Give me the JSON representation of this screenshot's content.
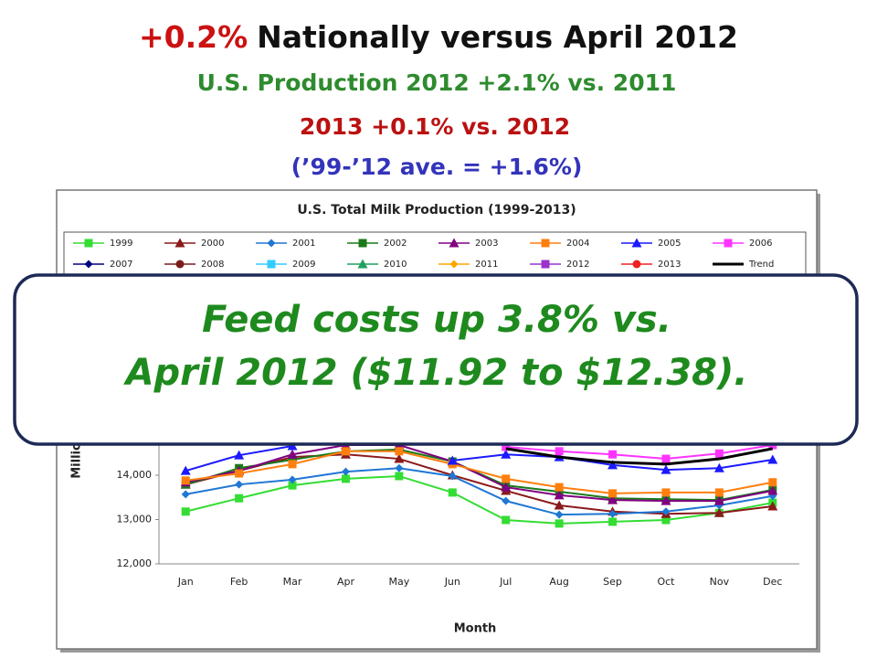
{
  "chart_data": {
    "type": "line",
    "title_prefix": "+0.2%",
    "title": "Nationally versus April 2012",
    "subtitle": "U.S. Production 2012 +2.1% vs. 2011",
    "subtitle_2": "2013 +0.1% vs. 2012",
    "subtitle_3": "(’99-’12 ave. = +1.6%)",
    "chart_title": "U.S. Total Milk Production (1999-2013)",
    "x_label": "Month",
    "y_label": "Million Pounds",
    "callout": [
      "Feed costs up 3.8% vs.",
      "April 2012 ($11.92 to $12.38)."
    ],
    "categories": [
      "Jan",
      "Feb",
      "Mar",
      "Apr",
      "May",
      "Jun",
      "Jul",
      "Aug",
      "Sep",
      "Oct",
      "Nov",
      "Dec"
    ],
    "ylim": [
      12000,
      18000
    ],
    "yticks": [
      {
        "value": 12000,
        "label": "12,000"
      },
      {
        "value": 13000,
        "label": "13,000"
      },
      {
        "value": 14000,
        "label": "14,000"
      }
    ],
    "grid": false,
    "series": [
      {
        "name": "1999",
        "color": "#33dd33",
        "marker": "square",
        "values": [
          13180,
          13480,
          13770,
          13920,
          13980,
          13610,
          12990,
          12910,
          12950,
          12990,
          13150,
          13380
        ]
      },
      {
        "name": "2000",
        "color": "#8b1a1a",
        "marker": "triangle",
        "values": [
          13790,
          14100,
          14410,
          14470,
          14370,
          14000,
          13650,
          13320,
          13180,
          13130,
          13150,
          13300
        ]
      },
      {
        "name": "2001",
        "color": "#1f77d4",
        "marker": "diamond",
        "values": [
          13570,
          13790,
          13900,
          14080,
          14160,
          13980,
          13420,
          13110,
          13130,
          13180,
          13320,
          13530
        ]
      },
      {
        "name": "2002",
        "color": "#1a7a1a",
        "marker": "square",
        "values": [
          13790,
          14160,
          14350,
          14540,
          14580,
          14310,
          13770,
          13630,
          13480,
          13460,
          13440,
          13670
        ]
      },
      {
        "name": "2003",
        "color": "#800080",
        "marker": "triangle",
        "values": [
          13840,
          14100,
          14470,
          14680,
          14680,
          14310,
          13730,
          13550,
          13440,
          13420,
          13420,
          13650
        ]
      },
      {
        "name": "2004",
        "color": "#ff7f0e",
        "marker": "square",
        "values": [
          13880,
          14040,
          14250,
          14540,
          14540,
          14250,
          13920,
          13730,
          13590,
          13610,
          13610,
          13840
        ]
      },
      {
        "name": "2005",
        "color": "#1a1aff",
        "marker": "triangle",
        "values": [
          14100,
          14450,
          14660,
          null,
          null,
          14330,
          14470,
          14410,
          14230,
          14120,
          14160,
          14350
        ]
      },
      {
        "name": "2006",
        "color": "#ff33ff",
        "marker": "square",
        "values": [
          null,
          null,
          null,
          null,
          null,
          null,
          14640,
          14540,
          14470,
          14370,
          14490,
          14680
        ]
      },
      {
        "name": "2007",
        "color": "#000080",
        "marker": "diamond",
        "values": [
          null,
          null,
          null,
          null,
          null,
          null,
          null,
          null,
          null,
          null,
          null,
          null
        ]
      },
      {
        "name": "2008",
        "color": "#7b1c1c",
        "marker": "circle",
        "values": [
          null,
          null,
          null,
          null,
          null,
          null,
          null,
          null,
          null,
          null,
          null,
          null
        ]
      },
      {
        "name": "2009",
        "color": "#33ccff",
        "marker": "square",
        "values": [
          null,
          null,
          null,
          null,
          null,
          null,
          null,
          null,
          null,
          null,
          null,
          null
        ]
      },
      {
        "name": "2010",
        "color": "#20a060",
        "marker": "triangle",
        "values": [
          null,
          null,
          null,
          null,
          null,
          null,
          null,
          null,
          null,
          null,
          null,
          null
        ]
      },
      {
        "name": "2011",
        "color": "#ffa500",
        "marker": "diamond",
        "values": [
          null,
          null,
          null,
          null,
          null,
          null,
          null,
          null,
          null,
          null,
          null,
          null
        ]
      },
      {
        "name": "2012",
        "color": "#9933cc",
        "marker": "square",
        "values": [
          null,
          null,
          null,
          null,
          null,
          null,
          null,
          null,
          null,
          null,
          null,
          null
        ]
      },
      {
        "name": "2013",
        "color": "#ee2222",
        "marker": "circle",
        "values": [
          null,
          null,
          null,
          null,
          null,
          null,
          null,
          null,
          null,
          null,
          null,
          null
        ]
      },
      {
        "name": "Trend",
        "color": "#000000",
        "marker": "none",
        "values": [
          null,
          null,
          null,
          null,
          null,
          null,
          14600,
          14410,
          14290,
          14250,
          14370,
          14600
        ]
      }
    ]
  }
}
